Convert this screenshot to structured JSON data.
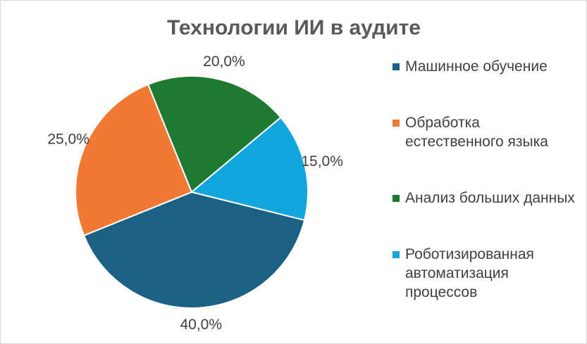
{
  "chart_data": {
    "type": "pie",
    "title": "Технологии ИИ в аудите",
    "categories": [
      "Машинное обучение",
      "Обработка естественного языка",
      "Анализ больших данных",
      "Роботизированная автоматизация процессов"
    ],
    "values": [
      40,
      25,
      20,
      15
    ],
    "value_labels": [
      "40,0%",
      "25,0%",
      "20,0%",
      "15,0%"
    ],
    "colors": [
      "#1b6185",
      "#f07a35",
      "#1e7a32",
      "#12a6df"
    ],
    "legend": "right"
  }
}
